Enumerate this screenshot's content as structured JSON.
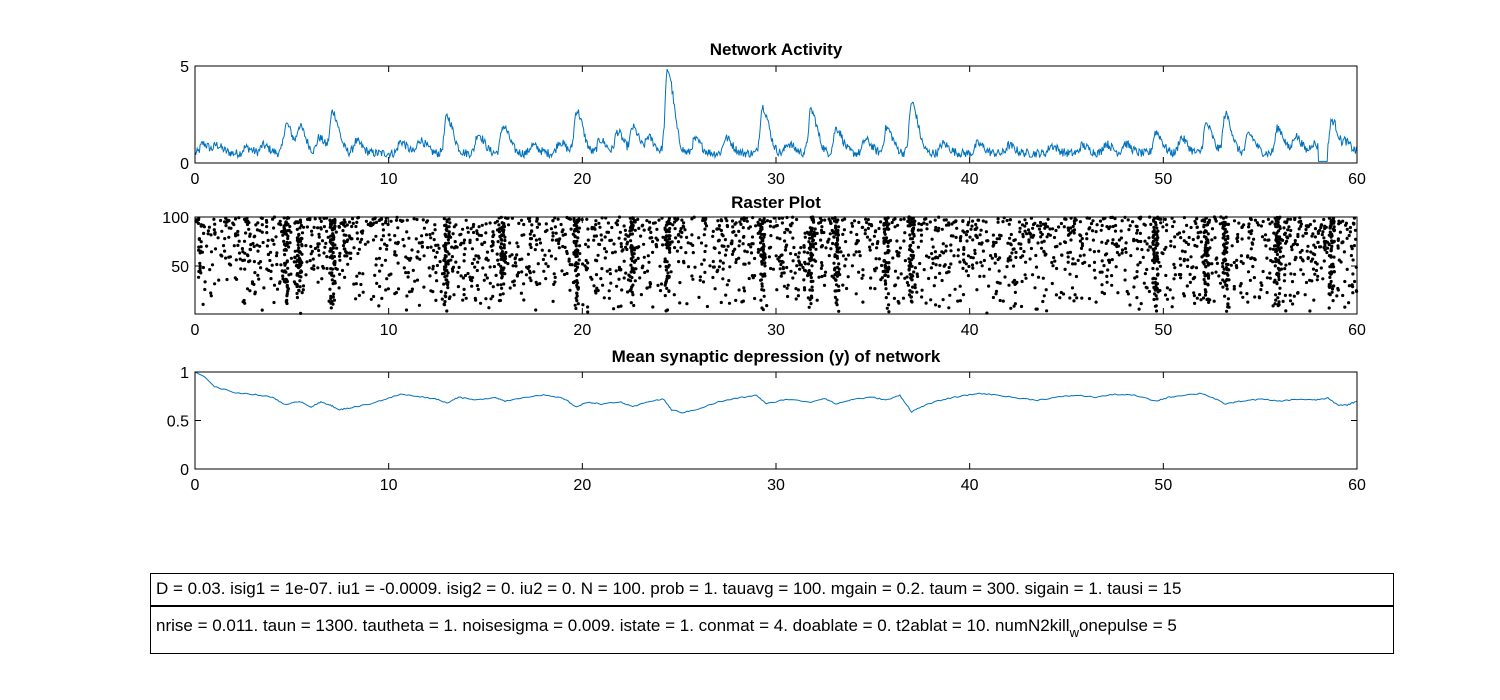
{
  "chart_data": [
    {
      "type": "line",
      "title": "Network Activity",
      "xlabel": "",
      "ylabel": "",
      "xlim": [
        0,
        60
      ],
      "ylim": [
        0,
        5
      ],
      "xticks": [
        0,
        10,
        20,
        30,
        40,
        50,
        60
      ],
      "yticks": [
        0,
        5
      ],
      "color": "#0072BD",
      "baseline": 0.5,
      "peaks": [
        {
          "x": 0.4,
          "y": 1.0
        },
        {
          "x": 1.1,
          "y": 0.9
        },
        {
          "x": 2.6,
          "y": 0.8
        },
        {
          "x": 3.5,
          "y": 0.9
        },
        {
          "x": 4.7,
          "y": 2.0
        },
        {
          "x": 5.4,
          "y": 1.8
        },
        {
          "x": 6.4,
          "y": 1.3
        },
        {
          "x": 7.1,
          "y": 2.6
        },
        {
          "x": 8.3,
          "y": 1.1
        },
        {
          "x": 10.6,
          "y": 1.1
        },
        {
          "x": 11.6,
          "y": 1.2
        },
        {
          "x": 13.0,
          "y": 2.4
        },
        {
          "x": 14.6,
          "y": 1.5
        },
        {
          "x": 15.9,
          "y": 1.9
        },
        {
          "x": 17.4,
          "y": 0.9
        },
        {
          "x": 18.8,
          "y": 1.1
        },
        {
          "x": 19.7,
          "y": 2.7
        },
        {
          "x": 20.9,
          "y": 1.2
        },
        {
          "x": 21.8,
          "y": 1.6
        },
        {
          "x": 22.6,
          "y": 1.8
        },
        {
          "x": 23.4,
          "y": 1.3
        },
        {
          "x": 24.4,
          "y": 4.8
        },
        {
          "x": 25.8,
          "y": 1.2
        },
        {
          "x": 27.4,
          "y": 1.3
        },
        {
          "x": 29.3,
          "y": 2.9
        },
        {
          "x": 30.6,
          "y": 1.0
        },
        {
          "x": 31.8,
          "y": 2.7
        },
        {
          "x": 33.1,
          "y": 1.8
        },
        {
          "x": 34.6,
          "y": 1.2
        },
        {
          "x": 35.7,
          "y": 1.8
        },
        {
          "x": 37.0,
          "y": 3.1
        },
        {
          "x": 38.6,
          "y": 1.0
        },
        {
          "x": 40.4,
          "y": 1.0
        },
        {
          "x": 42.0,
          "y": 0.9
        },
        {
          "x": 44.2,
          "y": 0.9
        },
        {
          "x": 45.8,
          "y": 0.9
        },
        {
          "x": 47.0,
          "y": 1.0
        },
        {
          "x": 48.0,
          "y": 1.0
        },
        {
          "x": 49.6,
          "y": 1.6
        },
        {
          "x": 50.9,
          "y": 1.3
        },
        {
          "x": 52.2,
          "y": 2.0
        },
        {
          "x": 53.2,
          "y": 2.5
        },
        {
          "x": 54.4,
          "y": 1.5
        },
        {
          "x": 55.9,
          "y": 1.8
        },
        {
          "x": 56.8,
          "y": 1.4
        },
        {
          "x": 57.7,
          "y": 1.0
        },
        {
          "x": 58.7,
          "y": 2.2
        },
        {
          "x": 59.4,
          "y": 1.0
        }
      ]
    },
    {
      "type": "scatter",
      "title": "Raster Plot",
      "xlabel": "",
      "ylabel": "",
      "xlim": [
        0,
        60
      ],
      "ylim": [
        1,
        100
      ],
      "xticks": [
        0,
        10,
        20,
        30,
        40,
        50,
        60
      ],
      "yticks": [
        50,
        100
      ],
      "color": "#000000",
      "burst_times": [
        4.7,
        5.4,
        7.1,
        13.0,
        15.9,
        19.7,
        22.6,
        24.4,
        29.3,
        31.8,
        33.1,
        35.7,
        37.0,
        49.6,
        52.2,
        53.2,
        55.9,
        58.7
      ]
    },
    {
      "type": "line",
      "title": "Mean synaptic depression (y) of network",
      "xlabel": "",
      "ylabel": "",
      "xlim": [
        0,
        60
      ],
      "ylim": [
        0,
        1
      ],
      "xticks": [
        0,
        10,
        20,
        30,
        40,
        50,
        60
      ],
      "yticks": [
        0,
        0.5,
        1
      ],
      "color": "#0072BD",
      "x": [
        0,
        0.5,
        1,
        2,
        3,
        4,
        4.7,
        5.4,
        6,
        6.5,
        7,
        7.4,
        8,
        9,
        10,
        10.6,
        11.5,
        12.5,
        13,
        13.6,
        14.5,
        15.5,
        16,
        17,
        18,
        19,
        19.7,
        20.3,
        21,
        22,
        22.6,
        23.5,
        24.2,
        24.6,
        25.2,
        26,
        27,
        28,
        29,
        29.5,
        30.5,
        31.8,
        32.5,
        33.1,
        34,
        35,
        35.7,
        36.4,
        37,
        37.6,
        38.5,
        39.5,
        40.5,
        41.5,
        42.5,
        43.5,
        44.5,
        45.5,
        46.5,
        47.5,
        48.5,
        49.6,
        50.3,
        51,
        52,
        52.6,
        53.2,
        54,
        55,
        56,
        57,
        57.8,
        58.5,
        59,
        59.5,
        60
      ],
      "y": [
        1.0,
        0.95,
        0.85,
        0.79,
        0.77,
        0.74,
        0.66,
        0.7,
        0.64,
        0.69,
        0.66,
        0.61,
        0.63,
        0.67,
        0.73,
        0.77,
        0.75,
        0.72,
        0.68,
        0.74,
        0.71,
        0.74,
        0.7,
        0.74,
        0.76,
        0.73,
        0.64,
        0.69,
        0.67,
        0.69,
        0.64,
        0.7,
        0.72,
        0.61,
        0.58,
        0.62,
        0.69,
        0.73,
        0.76,
        0.67,
        0.72,
        0.69,
        0.73,
        0.67,
        0.72,
        0.74,
        0.71,
        0.76,
        0.59,
        0.65,
        0.71,
        0.75,
        0.78,
        0.76,
        0.73,
        0.71,
        0.74,
        0.76,
        0.74,
        0.77,
        0.76,
        0.7,
        0.74,
        0.76,
        0.78,
        0.73,
        0.67,
        0.7,
        0.72,
        0.7,
        0.72,
        0.71,
        0.73,
        0.66,
        0.66,
        0.7
      ]
    }
  ],
  "params": {
    "line1": "D = 0.03. isig1 = 1e-07. iu1 = -0.0009. isig2 = 0. iu2 = 0. N = 100. prob = 1. tauavg = 100. mgain = 0.2. taum = 300. sigain = 1. tausi = 15",
    "line2_main": "nrise = 0.011. taun = 1300. tautheta = 1. noisesigma = 0.009. istate = 1. conmat = 4. doablate = 0. t2ablat = 10. numN2kill",
    "line2_sub": "w",
    "line2_tail": "onepulse = 5"
  }
}
